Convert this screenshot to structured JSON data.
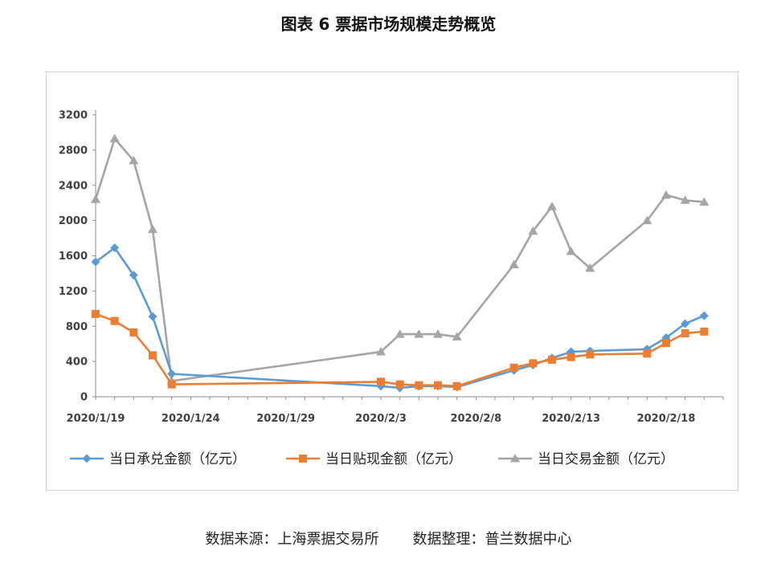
{
  "header": {
    "title": "图表 6  票据市场规模走势概览"
  },
  "footer": {
    "source": "数据来源：上海票据交易所",
    "compiler": "数据整理：普兰数据中心"
  },
  "chart_data": {
    "type": "line",
    "title": "图表 6  票据市场规模走势概览",
    "xlabel": "",
    "ylabel": "",
    "ylim": [
      0,
      3200
    ],
    "yticks": [
      0,
      400,
      800,
      1200,
      1600,
      2000,
      2400,
      2800,
      3200
    ],
    "x_tick_labels": [
      {
        "date": "2020-01-19",
        "label": "2020/1/19"
      },
      {
        "date": "2020-01-24",
        "label": "2020/1/24"
      },
      {
        "date": "2020-01-29",
        "label": "2020/1/29"
      },
      {
        "date": "2020-02-03",
        "label": "2020/2/3"
      },
      {
        "date": "2020-02-08",
        "label": "2020/2/8"
      },
      {
        "date": "2020-02-13",
        "label": "2020/2/13"
      },
      {
        "date": "2020-02-18",
        "label": "2020/2/18"
      }
    ],
    "xlim": [
      "2020-01-19",
      "2020-02-21"
    ],
    "grid": false,
    "legend_position": "bottom",
    "series": [
      {
        "name": "当日承兑金额（亿元）",
        "color": "#5b9bd5",
        "marker": "diamond",
        "points": [
          [
            "2020-01-19",
            1530
          ],
          [
            "2020-01-20",
            1690
          ],
          [
            "2020-01-21",
            1380
          ],
          [
            "2020-01-22",
            910
          ],
          [
            "2020-01-23",
            260
          ],
          [
            "2020-02-03",
            120
          ],
          [
            "2020-02-04",
            100
          ],
          [
            "2020-02-05",
            120
          ],
          [
            "2020-02-06",
            120
          ],
          [
            "2020-02-07",
            110
          ],
          [
            "2020-02-10",
            300
          ],
          [
            "2020-02-11",
            360
          ],
          [
            "2020-02-12",
            440
          ],
          [
            "2020-02-13",
            510
          ],
          [
            "2020-02-14",
            520
          ],
          [
            "2020-02-17",
            540
          ],
          [
            "2020-02-18",
            670
          ],
          [
            "2020-02-19",
            830
          ],
          [
            "2020-02-20",
            920
          ]
        ]
      },
      {
        "name": "当日贴现金额（亿元）",
        "color": "#ed7d31",
        "marker": "square",
        "points": [
          [
            "2020-01-19",
            940
          ],
          [
            "2020-01-20",
            860
          ],
          [
            "2020-01-21",
            730
          ],
          [
            "2020-01-22",
            470
          ],
          [
            "2020-01-23",
            140
          ],
          [
            "2020-02-03",
            170
          ],
          [
            "2020-02-04",
            140
          ],
          [
            "2020-02-05",
            130
          ],
          [
            "2020-02-06",
            130
          ],
          [
            "2020-02-07",
            120
          ],
          [
            "2020-02-10",
            330
          ],
          [
            "2020-02-11",
            380
          ],
          [
            "2020-02-12",
            420
          ],
          [
            "2020-02-13",
            450
          ],
          [
            "2020-02-14",
            480
          ],
          [
            "2020-02-17",
            490
          ],
          [
            "2020-02-18",
            610
          ],
          [
            "2020-02-19",
            720
          ],
          [
            "2020-02-20",
            740
          ]
        ]
      },
      {
        "name": "当日交易金额（亿元）",
        "color": "#a5a5a5",
        "marker": "triangle",
        "points": [
          [
            "2020-01-19",
            2240
          ],
          [
            "2020-01-20",
            2930
          ],
          [
            "2020-01-21",
            2680
          ],
          [
            "2020-01-22",
            1900
          ],
          [
            "2020-01-23",
            180
          ],
          [
            "2020-02-03",
            510
          ],
          [
            "2020-02-04",
            710
          ],
          [
            "2020-02-05",
            710
          ],
          [
            "2020-02-06",
            710
          ],
          [
            "2020-02-07",
            680
          ],
          [
            "2020-02-10",
            1500
          ],
          [
            "2020-02-11",
            1880
          ],
          [
            "2020-02-12",
            2160
          ],
          [
            "2020-02-13",
            1650
          ],
          [
            "2020-02-14",
            1460
          ],
          [
            "2020-02-17",
            2000
          ],
          [
            "2020-02-18",
            2290
          ],
          [
            "2020-02-19",
            2230
          ],
          [
            "2020-02-20",
            2210
          ]
        ]
      }
    ]
  }
}
